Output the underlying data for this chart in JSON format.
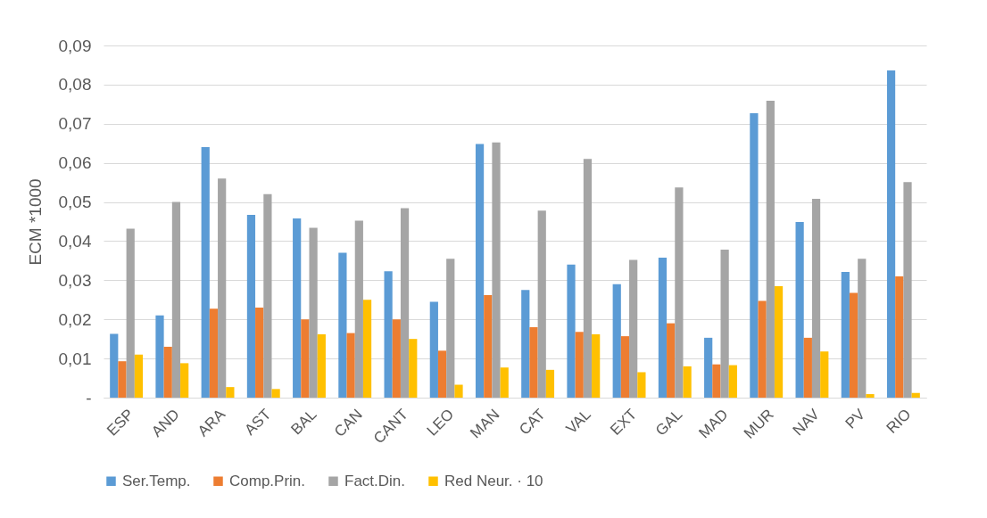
{
  "chart_data": {
    "type": "bar",
    "ylabel": "ECM *1000",
    "categories": [
      "ESP",
      "AND",
      "ARA",
      "AST",
      "BAL",
      "CAN",
      "CANT",
      "LEO",
      "MAN",
      "CAT",
      "VAL",
      "EXT",
      "GAL",
      "MAD",
      "MUR",
      "NAV",
      "PV",
      "RIO"
    ],
    "series": [
      {
        "name": "Ser.Temp.",
        "color": "#5b9bd5",
        "values": [
          0.0163,
          0.021,
          0.064,
          0.0467,
          0.0458,
          0.037,
          0.0323,
          0.0245,
          0.0648,
          0.0275,
          0.034,
          0.029,
          0.0358,
          0.0153,
          0.0727,
          0.0449,
          0.0321,
          0.0836
        ]
      },
      {
        "name": "Comp.Prin.",
        "color": "#ed7d31",
        "values": [
          0.0093,
          0.013,
          0.0227,
          0.023,
          0.02,
          0.0165,
          0.02,
          0.012,
          0.0262,
          0.018,
          0.0168,
          0.0157,
          0.019,
          0.0085,
          0.0247,
          0.0153,
          0.0268,
          0.031
        ]
      },
      {
        "name": "Fact.Din.",
        "color": "#a5a5a5",
        "values": [
          0.0432,
          0.05,
          0.056,
          0.052,
          0.0434,
          0.0452,
          0.0484,
          0.0355,
          0.0652,
          0.0478,
          0.061,
          0.0352,
          0.0537,
          0.0378,
          0.0759,
          0.0508,
          0.0355,
          0.0551
        ]
      },
      {
        "name": "Red Neur. · 10",
        "color": "#ffc000",
        "values": [
          0.011,
          0.0088,
          0.0027,
          0.0022,
          0.0162,
          0.025,
          0.015,
          0.0033,
          0.0077,
          0.0071,
          0.0162,
          0.0065,
          0.008,
          0.0083,
          0.0285,
          0.0118,
          0.0009,
          0.0012
        ]
      }
    ],
    "ylim": [
      0,
      0.09
    ],
    "yticks": [
      {
        "value": 0,
        "label": "-"
      },
      {
        "value": 0.01,
        "label": "0,01"
      },
      {
        "value": 0.02,
        "label": "0,02"
      },
      {
        "value": 0.03,
        "label": "0,03"
      },
      {
        "value": 0.04,
        "label": "0,04"
      },
      {
        "value": 0.05,
        "label": "0,05"
      },
      {
        "value": 0.06,
        "label": "0,06"
      },
      {
        "value": 0.07,
        "label": "0,07"
      },
      {
        "value": 0.08,
        "label": "0,08"
      },
      {
        "value": 0.09,
        "label": "0,09"
      }
    ],
    "grid": "y",
    "legend": "bottom"
  }
}
